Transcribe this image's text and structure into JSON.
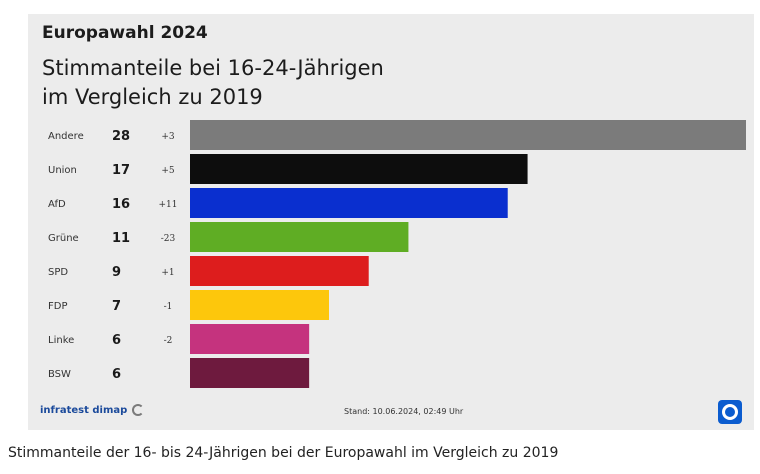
{
  "header": {
    "kicker": "Europawahl 2024",
    "title_line1": "Stimmanteile bei 16-24-Jährigen",
    "title_line2": "im Vergleich zu 2019"
  },
  "footer": {
    "source": "infratest dimap",
    "stand": "Stand: 10.06.2024, 02:49 Uhr",
    "brand_icon": "tagesschau-logo-icon"
  },
  "caption": "Stimmanteile der 16- bis 24-Jährigen bei der Europawahl im Vergleich zu 2019",
  "chart_data": {
    "type": "bar",
    "orientation": "horizontal",
    "title": "Stimmanteile bei 16-24-Jährigen im Vergleich zu 2019",
    "xlabel": "",
    "ylabel": "",
    "xlim": [
      0,
      28
    ],
    "grid": false,
    "legend": "none",
    "categories": [
      "Andere",
      "Union",
      "AfD",
      "Grüne",
      "SPD",
      "FDP",
      "Linke",
      "BSW"
    ],
    "values": [
      28,
      17,
      16,
      11,
      9,
      7,
      6,
      6
    ],
    "change_labels": [
      "+3",
      "+5",
      "+11",
      "-23",
      "+1",
      "-1",
      "-2",
      ""
    ],
    "colors": [
      "#7b7b7b",
      "#0d0d0d",
      "#0a2fcf",
      "#5fad24",
      "#dd1d1d",
      "#fdc70c",
      "#c5337e",
      "#6e1a3e"
    ]
  }
}
